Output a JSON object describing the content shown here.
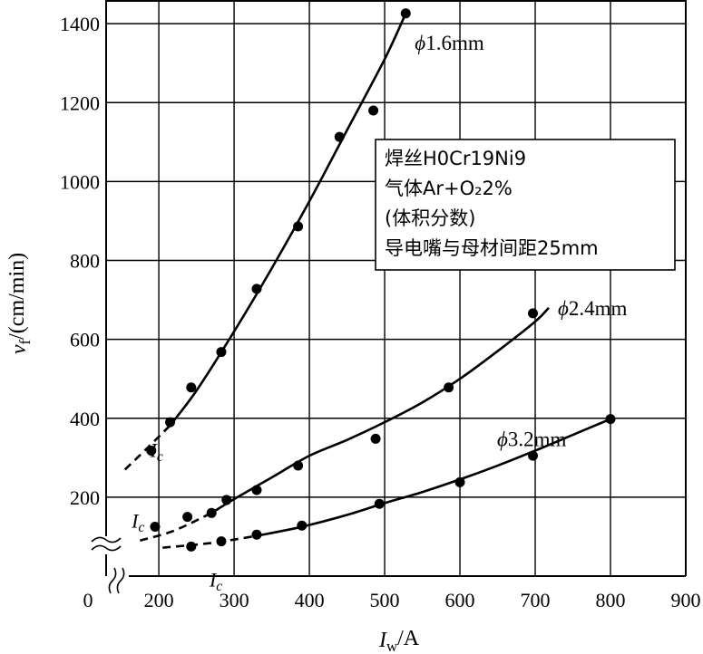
{
  "chart_data": {
    "type": "scatter",
    "xlabel": "I_w/A",
    "ylabel": "v_f/(cm/min)",
    "xlim": [
      130,
      900
    ],
    "ylim": [
      0,
      1460
    ],
    "origin_label": "0",
    "x_ticks": [
      200,
      300,
      400,
      500,
      600,
      700,
      800,
      900
    ],
    "y_ticks": [
      200,
      400,
      600,
      800,
      1000,
      1200,
      1400
    ],
    "grid": true,
    "annotation_box": {
      "lines": [
        "焊丝H0Cr19Ni9",
        "气体Ar+O₂2%",
        "(体积分数)",
        "导电嘴与母材间距25mm"
      ]
    },
    "critical_current_label": "I_c",
    "series": [
      {
        "name": "ϕ1.6mm",
        "points": [
          {
            "x": 190,
            "y": 318
          },
          {
            "x": 215,
            "y": 390
          },
          {
            "x": 243,
            "y": 478
          },
          {
            "x": 283,
            "y": 568
          },
          {
            "x": 330,
            "y": 728
          },
          {
            "x": 385,
            "y": 886
          },
          {
            "x": 440,
            "y": 1113
          },
          {
            "x": 485,
            "y": 1180
          },
          {
            "x": 528,
            "y": 1426
          }
        ],
        "curve_solid": [
          {
            "x": 215,
            "y": 382
          },
          {
            "x": 250,
            "y": 470
          },
          {
            "x": 300,
            "y": 620
          },
          {
            "x": 350,
            "y": 780
          },
          {
            "x": 400,
            "y": 950
          },
          {
            "x": 450,
            "y": 1130
          },
          {
            "x": 500,
            "y": 1310
          },
          {
            "x": 528,
            "y": 1426
          }
        ],
        "curve_dashed": [
          {
            "x": 155,
            "y": 270
          },
          {
            "x": 185,
            "y": 325
          },
          {
            "x": 215,
            "y": 382
          }
        ],
        "ic_x": 215
      },
      {
        "name": "ϕ2.4mm",
        "points": [
          {
            "x": 195,
            "y": 125
          },
          {
            "x": 238,
            "y": 150
          },
          {
            "x": 270,
            "y": 160
          },
          {
            "x": 290,
            "y": 193
          },
          {
            "x": 330,
            "y": 218
          },
          {
            "x": 385,
            "y": 280
          },
          {
            "x": 488,
            "y": 348
          },
          {
            "x": 585,
            "y": 478
          },
          {
            "x": 697,
            "y": 666
          }
        ],
        "curve_solid": [
          {
            "x": 270,
            "y": 160
          },
          {
            "x": 300,
            "y": 195
          },
          {
            "x": 350,
            "y": 250
          },
          {
            "x": 400,
            "y": 305
          },
          {
            "x": 450,
            "y": 345
          },
          {
            "x": 500,
            "y": 390
          },
          {
            "x": 550,
            "y": 440
          },
          {
            "x": 600,
            "y": 500
          },
          {
            "x": 650,
            "y": 570
          },
          {
            "x": 700,
            "y": 645
          },
          {
            "x": 718,
            "y": 680
          }
        ],
        "curve_dashed": [
          {
            "x": 175,
            "y": 90
          },
          {
            "x": 220,
            "y": 115
          },
          {
            "x": 270,
            "y": 160
          }
        ],
        "ic_x": 270
      },
      {
        "name": "ϕ3.2mm",
        "points": [
          {
            "x": 243,
            "y": 75
          },
          {
            "x": 283,
            "y": 88
          },
          {
            "x": 330,
            "y": 105
          },
          {
            "x": 390,
            "y": 128
          },
          {
            "x": 493,
            "y": 183
          },
          {
            "x": 600,
            "y": 238
          },
          {
            "x": 697,
            "y": 305
          },
          {
            "x": 800,
            "y": 398
          }
        ],
        "curve_solid": [
          {
            "x": 330,
            "y": 102
          },
          {
            "x": 390,
            "y": 125
          },
          {
            "x": 450,
            "y": 155
          },
          {
            "x": 500,
            "y": 185
          },
          {
            "x": 550,
            "y": 213
          },
          {
            "x": 600,
            "y": 245
          },
          {
            "x": 650,
            "y": 280
          },
          {
            "x": 700,
            "y": 318
          },
          {
            "x": 750,
            "y": 358
          },
          {
            "x": 800,
            "y": 398
          }
        ],
        "curve_dashed": [
          {
            "x": 205,
            "y": 72
          },
          {
            "x": 270,
            "y": 84
          },
          {
            "x": 330,
            "y": 102
          }
        ],
        "ic_x": 330
      }
    ]
  }
}
